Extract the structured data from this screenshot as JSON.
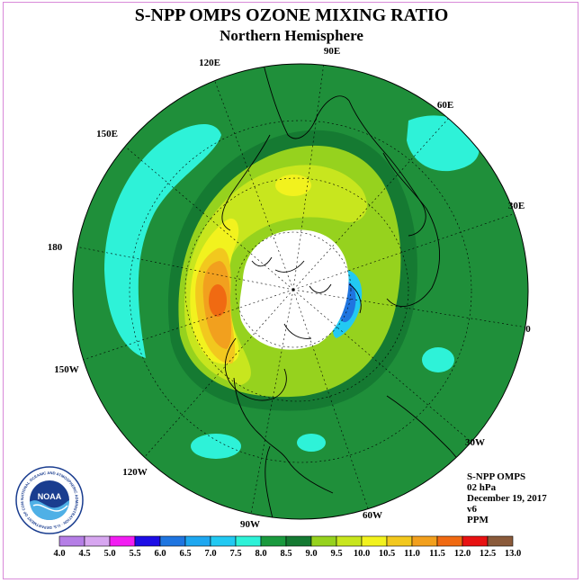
{
  "header": {
    "title": "S-NPP OMPS OZONE MIXING RATIO",
    "subtitle": "Northern Hemisphere"
  },
  "map": {
    "projection": "polar stereographic",
    "hemisphere": "north",
    "longitude_labels": [
      "90E",
      "60E",
      "30E",
      "0",
      "30W",
      "60W",
      "90W",
      "120W",
      "150W",
      "180",
      "150E",
      "120E"
    ],
    "polar_cap_no_data_color": "#ffffff",
    "background_color": "#1f8f3a"
  },
  "info": {
    "instrument": "S-NPP OMPS",
    "level": "02 hPa",
    "date": "December 19, 2017",
    "version": "v6",
    "units": "PPM"
  },
  "logo": {
    "text": "NOAA",
    "ring_text": "NATIONAL OCEANIC AND ATMOSPHERIC ADMINISTRATION · U.S. DEPARTMENT OF COMMERCE"
  },
  "colorbar": {
    "tick_labels": [
      "4.0",
      "4.5",
      "5.0",
      "5.5",
      "6.0",
      "6.5",
      "7.0",
      "7.5",
      "8.0",
      "8.5",
      "9.0",
      "9.5",
      "10.0",
      "10.5",
      "11.0",
      "11.5",
      "12.0",
      "12.5",
      "13.0"
    ],
    "colors": [
      "#b57ee6",
      "#d7a6f0",
      "#f21df2",
      "#1d0de6",
      "#1f75e0",
      "#1ea7f0",
      "#22c9f2",
      "#2ef2d8",
      "#1a9a3e",
      "#157a32",
      "#96d21e",
      "#c8e61e",
      "#f2f21e",
      "#f2c81e",
      "#f2a01e",
      "#f06a12",
      "#e81212",
      "#8a5a3a"
    ]
  }
}
